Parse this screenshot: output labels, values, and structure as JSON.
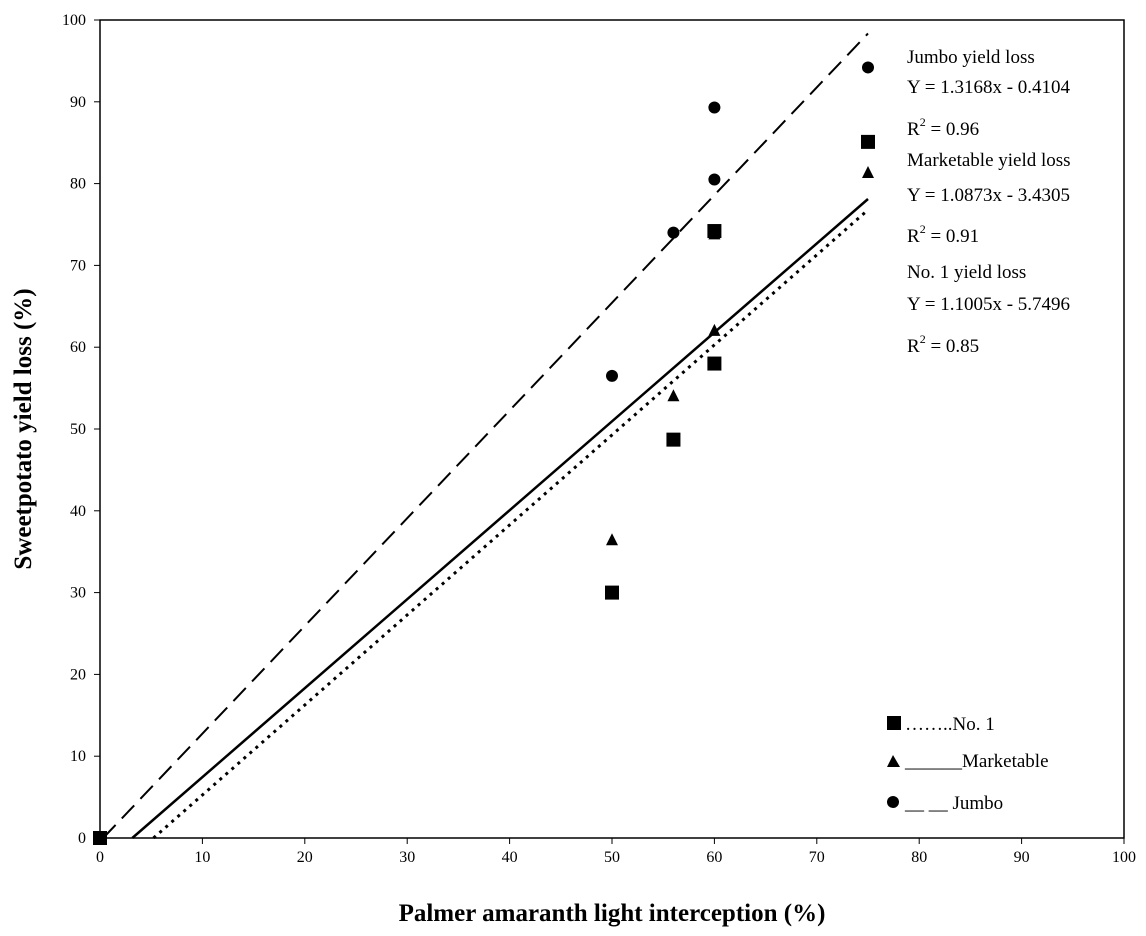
{
  "chart_data": {
    "type": "scatter",
    "xlabel": "Palmer amaranth light interception (%)",
    "ylabel": "Sweetpotato yield loss (%)",
    "xlim": [
      0,
      100
    ],
    "ylim": [
      0,
      100
    ],
    "x_ticks": [
      0,
      10,
      20,
      30,
      40,
      50,
      60,
      70,
      80,
      90,
      100
    ],
    "y_ticks": [
      0,
      10,
      20,
      30,
      40,
      50,
      60,
      70,
      80,
      90,
      100
    ],
    "grid": false,
    "legend_position": "bottom-right",
    "series": [
      {
        "name": "No. 1",
        "legend_text": "……..No. 1",
        "marker": "square",
        "line_style": "dotted",
        "slope": 1.1005,
        "intercept": -5.7496,
        "points": [
          [
            0,
            0
          ],
          [
            50,
            30
          ],
          [
            56,
            48.7
          ],
          [
            60,
            58
          ],
          [
            60,
            74.2
          ],
          [
            75,
            85.1
          ]
        ]
      },
      {
        "name": "Marketable",
        "legend_text": "______Marketable",
        "marker": "triangle",
        "line_style": "solid",
        "slope": 1.0873,
        "intercept": -3.4305,
        "points": [
          [
            0,
            0
          ],
          [
            50,
            36.4
          ],
          [
            56,
            54
          ],
          [
            60,
            62
          ],
          [
            60,
            73.8
          ],
          [
            75,
            81.3
          ]
        ]
      },
      {
        "name": "Jumbo",
        "legend_text": "__ __ Jumbo",
        "marker": "circle",
        "line_style": "dashed",
        "slope": 1.3168,
        "intercept": -0.4104,
        "points": [
          [
            0,
            0
          ],
          [
            50,
            56.5
          ],
          [
            56,
            74
          ],
          [
            60,
            80.5
          ],
          [
            60,
            89.3
          ],
          [
            75,
            94.2
          ]
        ]
      }
    ],
    "annotations": [
      {
        "title": "Jumbo yield loss",
        "equation": "Y = 1.3168x - 0.4104",
        "r2": "= 0.96"
      },
      {
        "title": "Marketable yield loss",
        "equation": "Y = 1.0873x - 3.4305",
        "r2": "= 0.91"
      },
      {
        "title": "No. 1 yield loss",
        "equation": "Y = 1.1005x - 5.7496",
        "r2": "= 0.85"
      }
    ]
  }
}
